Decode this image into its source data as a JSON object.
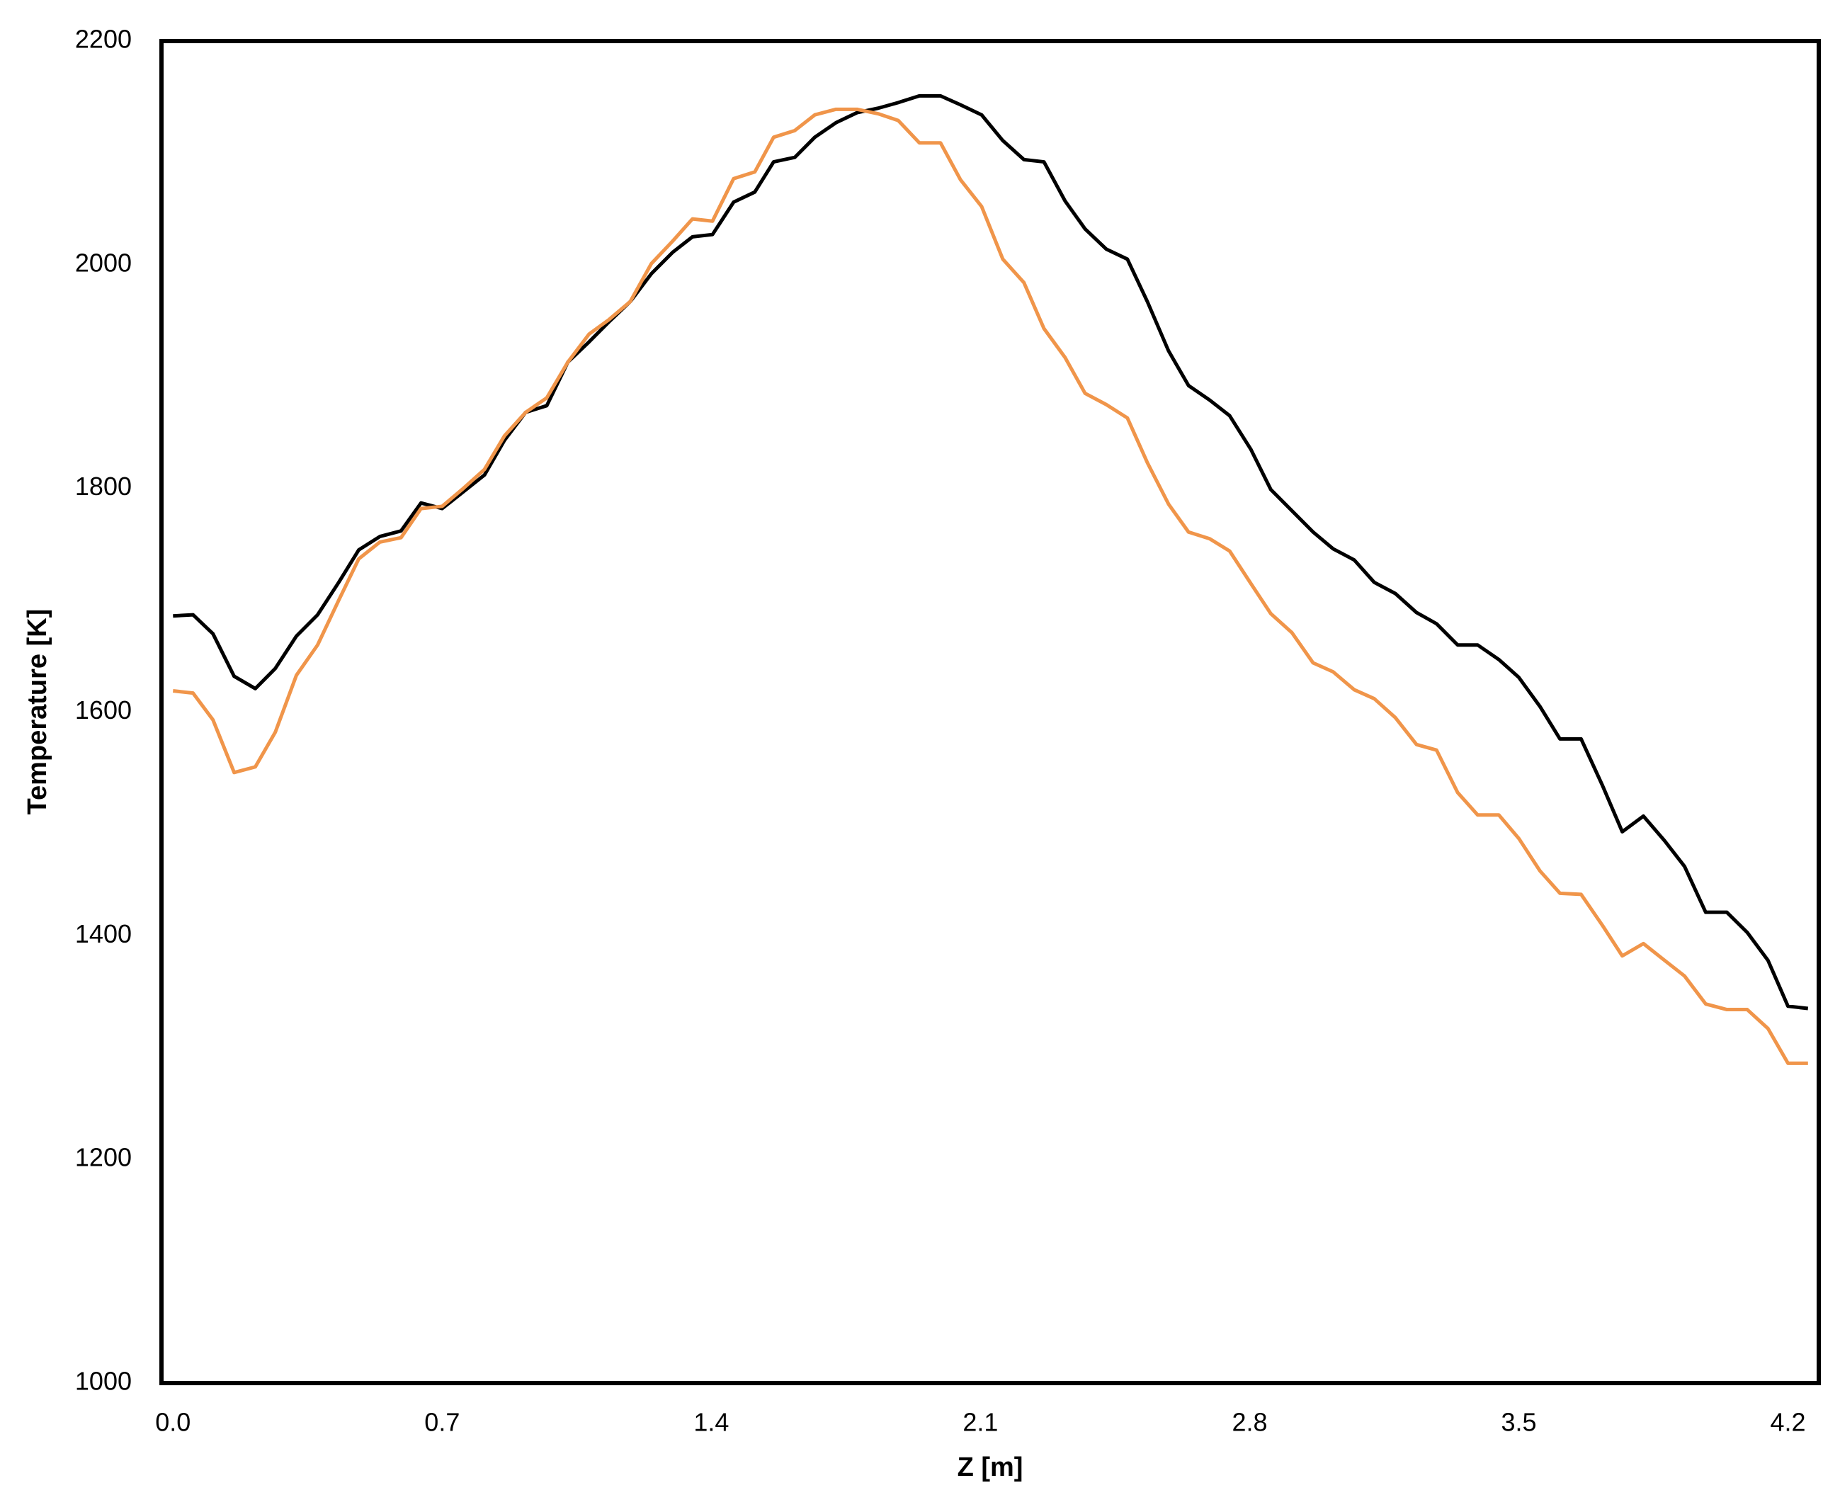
{
  "chart_data": {
    "type": "line",
    "x_label": "Z [m]",
    "y_label": "Temperature [K]",
    "x": [
      0,
      0.052,
      0.104,
      0.159,
      0.214,
      0.266,
      0.321,
      0.376,
      0.431,
      0.483,
      0.538,
      0.593,
      0.645,
      0.7,
      0.755,
      0.81,
      0.862,
      0.917,
      0.972,
      1.027,
      1.082,
      1.134,
      1.189,
      1.244,
      1.299,
      1.351,
      1.403,
      1.458,
      1.513,
      1.562,
      1.617,
      1.669,
      1.724,
      1.779,
      1.834,
      1.886,
      1.941,
      1.996,
      2.048,
      2.103,
      2.158,
      2.213,
      2.265,
      2.32,
      2.372,
      2.427,
      2.482,
      2.534,
      2.589,
      2.641,
      2.696,
      2.748,
      2.803,
      2.855,
      2.91,
      2.965,
      3.017,
      3.072,
      3.124,
      3.179,
      3.234,
      3.286,
      3.341,
      3.393,
      3.448,
      3.5,
      3.555,
      3.607,
      3.662,
      3.718,
      3.769,
      3.824,
      3.879,
      3.931,
      3.986,
      4.041,
      4.094,
      4.148,
      4.2,
      4.252
    ],
    "series": [
      {
        "color": "#000000",
        "values": [
          1686,
          1687,
          1670,
          1632,
          1621,
          1639,
          1668,
          1687,
          1716,
          1745,
          1757,
          1762,
          1787,
          1782,
          1797,
          1812,
          1843,
          1868,
          1874,
          1913,
          1931,
          1949,
          1967,
          1992,
          2011,
          2025,
          2027,
          2056,
          2065,
          2092,
          2096,
          2114,
          2127,
          2136,
          2140,
          2145,
          2151,
          2151,
          2143,
          2134,
          2111,
          2094,
          2092,
          2057,
          2032,
          2014,
          2005,
          1967,
          1923,
          1892,
          1879,
          1865,
          1835,
          1799,
          1780,
          1761,
          1746,
          1736,
          1716,
          1706,
          1689,
          1679,
          1660,
          1660,
          1647,
          1631,
          1605,
          1576,
          1576,
          1534,
          1493,
          1507,
          1485,
          1462,
          1421,
          1421,
          1403,
          1378,
          1337,
          1335
        ]
      },
      {
        "color": "#f0954a",
        "values": [
          1619,
          1617,
          1593,
          1546,
          1551,
          1582,
          1633,
          1660,
          1700,
          1737,
          1752,
          1756,
          1782,
          1784,
          1800,
          1817,
          1847,
          1868,
          1881,
          1913,
          1938,
          1951,
          1967,
          2001,
          2021,
          2041,
          2039,
          2077,
          2083,
          2114,
          2120,
          2134,
          2139,
          2139,
          2135,
          2129,
          2109,
          2109,
          2076,
          2052,
          2005,
          1984,
          1943,
          1917,
          1885,
          1875,
          1863,
          1823,
          1786,
          1761,
          1755,
          1744,
          1715,
          1688,
          1671,
          1644,
          1636,
          1620,
          1612,
          1595,
          1571,
          1566,
          1528,
          1508,
          1508,
          1487,
          1458,
          1438,
          1437,
          1409,
          1382,
          1393,
          1378,
          1364,
          1339,
          1334,
          1334,
          1317,
          1286,
          1286
        ]
      }
    ],
    "xlim": [
      -0.03,
      4.28
    ],
    "ylim": [
      1000,
      2200
    ],
    "xticks": [
      {
        "value": 0,
        "label": "0.0"
      },
      0.7,
      1.4,
      2.1,
      2.8,
      3.5,
      4.2
    ],
    "yticks": [
      1000,
      1200,
      1400,
      1600,
      1800,
      2000,
      2200
    ],
    "grid": false
  }
}
